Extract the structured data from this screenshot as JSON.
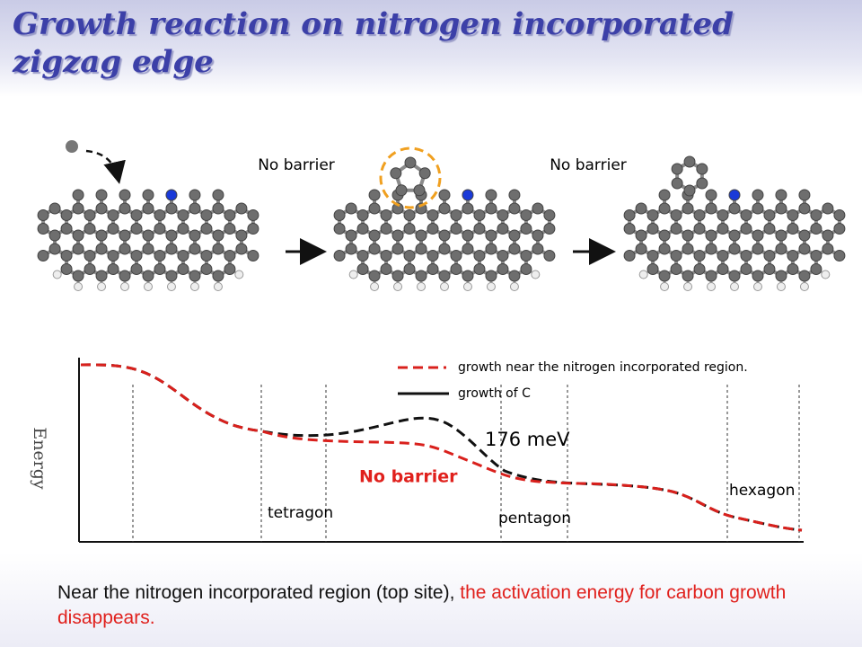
{
  "title": "Growth reaction on nitrogen incorporated zigzag edge",
  "reaction": {
    "step_labels": [
      "No barrier",
      "No barrier"
    ]
  },
  "diagram": {
    "axis_label": "Energy",
    "legend": [
      "growth near the nitrogen incorporated region.",
      "growth of C"
    ],
    "barrier_label": "176 meV",
    "no_barrier_label": "No barrier",
    "state_labels": [
      "tetragon",
      "pentagon",
      "hexagon"
    ]
  },
  "caption": {
    "plain": "Near the nitrogen incorporated region (top site),",
    "highlight": "the activation energy for carbon growth disappears."
  }
}
